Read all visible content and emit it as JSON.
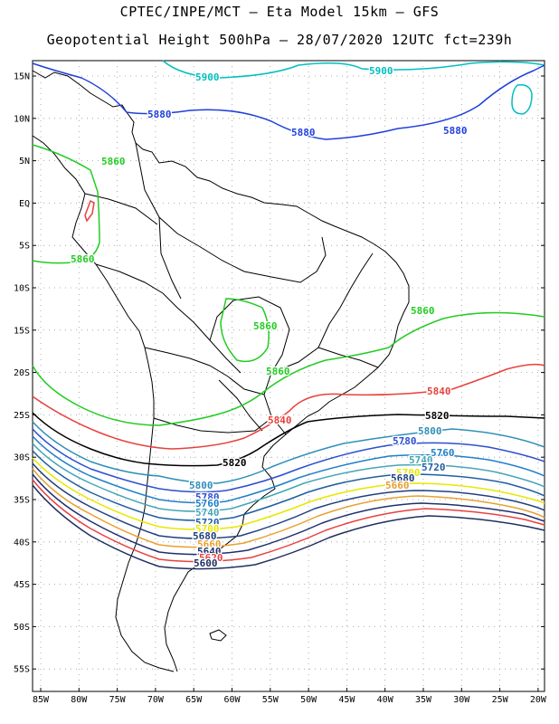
{
  "title": {
    "line1": "CPTEC/INPE/MCT –  Eta Model 15km – GFS",
    "line2": "Geopotential Height 500hPa – 28/07/2020 12UTC fct=239h"
  },
  "lat_labels": [
    "15N",
    "10N",
    "5N",
    "EQ",
    "5S",
    "10S",
    "15S",
    "20S",
    "25S",
    "30S",
    "35S",
    "40S",
    "45S",
    "50S",
    "55S"
  ],
  "lon_labels": [
    "85W",
    "80W",
    "75W",
    "70W",
    "65W",
    "60W",
    "55W",
    "50W",
    "45W",
    "40W",
    "35W",
    "30W",
    "25W",
    "20W"
  ],
  "contours": [
    {
      "value": "5900",
      "color": "#00bfbf"
    },
    {
      "value": "5880",
      "color": "#1f3fdc"
    },
    {
      "value": "5860",
      "color": "#22cc22"
    },
    {
      "value": "5840",
      "color": "#e8413c"
    },
    {
      "value": "5820",
      "color": "#000000"
    },
    {
      "value": "5800",
      "color": "#2f8fb8"
    },
    {
      "value": "5780",
      "color": "#2c4fcf"
    },
    {
      "value": "5760",
      "color": "#1f7fc8"
    },
    {
      "value": "5740",
      "color": "#46a5b5"
    },
    {
      "value": "5720",
      "color": "#1f5fa0"
    },
    {
      "value": "5700",
      "color": "#e8e800"
    },
    {
      "value": "5680",
      "color": "#1f3f7f"
    },
    {
      "value": "5660",
      "color": "#e8a030"
    },
    {
      "value": "5640",
      "color": "#1f2f6f"
    },
    {
      "value": "5620",
      "color": "#e84040"
    },
    {
      "value": "5600",
      "color": "#1f2f60"
    }
  ]
}
